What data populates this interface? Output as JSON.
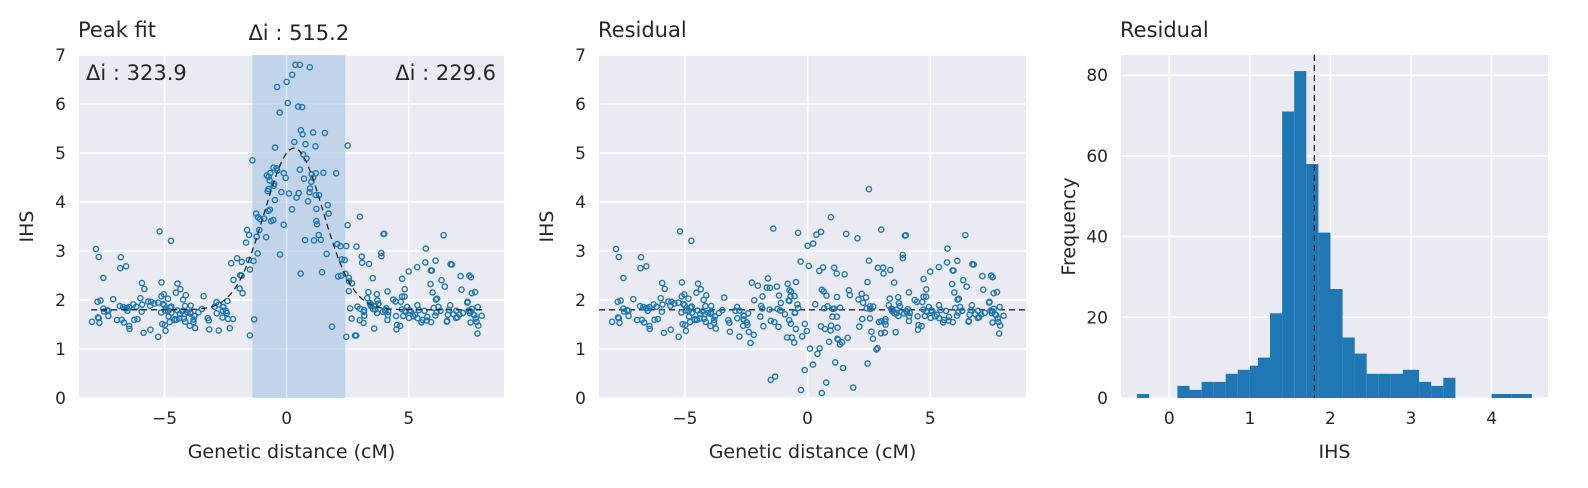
{
  "colors": {
    "series": "#1f77b4",
    "band": "#aac7e4",
    "line": "#262626",
    "background": "#eaeaf2",
    "grid": "#ffffff"
  },
  "chart_data": [
    {
      "type": "scatter",
      "title": "Peak fit",
      "xlabel": "Genetic distance (cM)",
      "ylabel": "IHS",
      "xlim": [
        -8.5,
        8.9
      ],
      "ylim": [
        0,
        7
      ],
      "xticks": [
        -5,
        0,
        5
      ],
      "yticks": [
        0,
        1,
        2,
        3,
        4,
        5,
        6,
        7
      ],
      "grid": true,
      "annotations": {
        "left": "Δi : 323.9",
        "center": "Δi : 515.2",
        "right": "Δi : 229.6"
      },
      "shaded_region": [
        -1.4,
        2.4
      ],
      "fit_curve": {
        "baseline": 1.8,
        "peak_height": 3.3,
        "center": 0.3,
        "sigma": 1.2
      },
      "point_cloud": {
        "count": 340,
        "x_range": [
          -8,
          8
        ],
        "baseline_mean": 1.75,
        "baseline_spread": 0.2
      }
    },
    {
      "type": "scatter",
      "title": "Residual",
      "xlabel": "Genetic distance (cM)",
      "ylabel": "IHS",
      "xlim": [
        -8.5,
        8.9
      ],
      "ylim": [
        0,
        7
      ],
      "xticks": [
        -5,
        0,
        5
      ],
      "yticks": [
        0,
        1,
        2,
        3,
        4,
        5,
        6,
        7
      ],
      "grid": true,
      "reference_line": 1.8
    },
    {
      "type": "bar",
      "subtype": "histogram",
      "title": "Residual",
      "xlabel": "IHS",
      "ylabel": "Frequency",
      "xlim": [
        -0.6,
        4.7
      ],
      "ylim": [
        0,
        85
      ],
      "xticks": [
        0,
        1,
        2,
        3,
        4
      ],
      "yticks": [
        0,
        20,
        40,
        60,
        80
      ],
      "grid": true,
      "reference_line": 1.8,
      "bins": [
        {
          "x0": -0.4,
          "x1": -0.25,
          "count": 1
        },
        {
          "x0": -0.25,
          "x1": -0.1,
          "count": 0
        },
        {
          "x0": -0.1,
          "x1": 0.1,
          "count": 0
        },
        {
          "x0": 0.1,
          "x1": 0.25,
          "count": 3
        },
        {
          "x0": 0.25,
          "x1": 0.4,
          "count": 2
        },
        {
          "x0": 0.4,
          "x1": 0.55,
          "count": 4
        },
        {
          "x0": 0.55,
          "x1": 0.7,
          "count": 4
        },
        {
          "x0": 0.7,
          "x1": 0.85,
          "count": 6
        },
        {
          "x0": 0.85,
          "x1": 1.0,
          "count": 7
        },
        {
          "x0": 1.0,
          "x1": 1.1,
          "count": 8
        },
        {
          "x0": 1.1,
          "x1": 1.25,
          "count": 10
        },
        {
          "x0": 1.25,
          "x1": 1.4,
          "count": 21
        },
        {
          "x0": 1.4,
          "x1": 1.55,
          "count": 71
        },
        {
          "x0": 1.55,
          "x1": 1.7,
          "count": 81
        },
        {
          "x0": 1.7,
          "x1": 1.85,
          "count": 58
        },
        {
          "x0": 1.85,
          "x1": 2.0,
          "count": 41
        },
        {
          "x0": 2.0,
          "x1": 2.15,
          "count": 27
        },
        {
          "x0": 2.15,
          "x1": 2.3,
          "count": 15
        },
        {
          "x0": 2.3,
          "x1": 2.45,
          "count": 11
        },
        {
          "x0": 2.45,
          "x1": 2.6,
          "count": 6
        },
        {
          "x0": 2.6,
          "x1": 2.75,
          "count": 6
        },
        {
          "x0": 2.75,
          "x1": 2.9,
          "count": 6
        },
        {
          "x0": 2.9,
          "x1": 3.1,
          "count": 7
        },
        {
          "x0": 3.1,
          "x1": 3.25,
          "count": 4
        },
        {
          "x0": 3.25,
          "x1": 3.4,
          "count": 3
        },
        {
          "x0": 3.4,
          "x1": 3.55,
          "count": 5
        },
        {
          "x0": 3.55,
          "x1": 3.7,
          "count": 0
        },
        {
          "x0": 3.7,
          "x1": 4.0,
          "count": 0
        },
        {
          "x0": 4.0,
          "x1": 4.25,
          "count": 1
        },
        {
          "x0": 4.25,
          "x1": 4.5,
          "count": 1
        }
      ]
    }
  ]
}
